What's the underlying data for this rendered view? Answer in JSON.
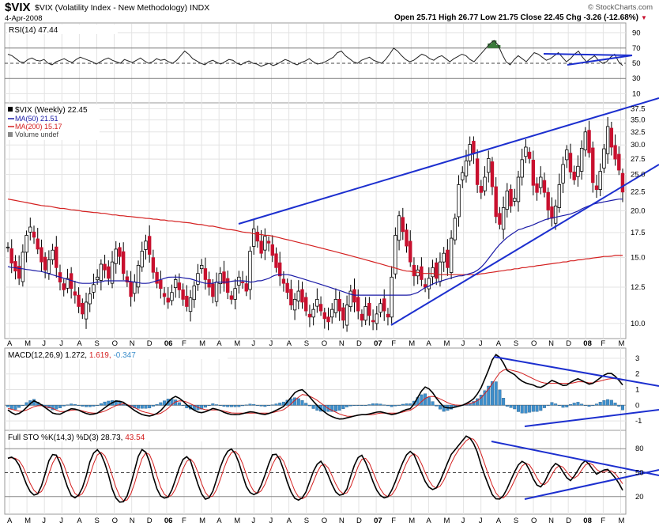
{
  "header": {
    "title": "$VIX (Volatility Index - New Methodology)",
    "exchange": "INDX",
    "date": "4-Apr-2008",
    "brand": "© StockCharts.com",
    "quote": "Open 25.71  High 26.77  Low 21.75  Close 22.45  Chg -3.26 (-12.68%)",
    "quote_arrow": "▼"
  },
  "colors": {
    "up": "#000000",
    "down": "#c8102e",
    "ma50": "#1a1aa6",
    "ma200": "#d42020",
    "trend": "#1c2fcf",
    "hist": "#3d8fcc",
    "rsi_fill": "#3a7a3a"
  },
  "x_axis": {
    "labels": [
      "A",
      "M",
      "J",
      "J",
      "A",
      "S",
      "O",
      "N",
      "D",
      "06",
      "F",
      "M",
      "A",
      "M",
      "J",
      "J",
      "A",
      "S",
      "O",
      "N",
      "D",
      "07",
      "F",
      "M",
      "A",
      "M",
      "J",
      "J",
      "A",
      "S",
      "O",
      "N",
      "D",
      "08",
      "F",
      "M"
    ],
    "bold_labels": [
      "06",
      "07",
      "08"
    ]
  },
  "rsi": {
    "legend": "RSI(14) 47.44",
    "ticks": [
      "90",
      "70",
      "50",
      "30",
      "10"
    ],
    "levels": [
      90,
      70,
      50,
      30,
      10
    ],
    "values": [
      62,
      60,
      56,
      52,
      51,
      55,
      57,
      54,
      53,
      55,
      50,
      48,
      52,
      54,
      56,
      53,
      51,
      55,
      58,
      56,
      54,
      52,
      49,
      52,
      55,
      57,
      54,
      52,
      50,
      55,
      53,
      51,
      54,
      57,
      53,
      50,
      52,
      56,
      54,
      55,
      52,
      50,
      54,
      60,
      66,
      62,
      56,
      53,
      50,
      48,
      52,
      54,
      51,
      49,
      52,
      55,
      54,
      50,
      48,
      51,
      53,
      50,
      49,
      46,
      48,
      50,
      47,
      49,
      52,
      55,
      53,
      50,
      48,
      51,
      53,
      56,
      52,
      49,
      50,
      52,
      55,
      58,
      64,
      66,
      60,
      56,
      52,
      50,
      54,
      56,
      58,
      54,
      52,
      50,
      55,
      62,
      70,
      66,
      60,
      55,
      52,
      54,
      58,
      62,
      60,
      56,
      54,
      58,
      60,
      56,
      52,
      56,
      59,
      62,
      60,
      55,
      52,
      58,
      64,
      70,
      76,
      80,
      74,
      62,
      52,
      48,
      55,
      60,
      56,
      52,
      58,
      64,
      62,
      58,
      54,
      56,
      60,
      64,
      58,
      52,
      56,
      62,
      66,
      58,
      52,
      56,
      60,
      54,
      50,
      52,
      58,
      62,
      52,
      47
    ]
  },
  "price": {
    "legend_symbol": "$VIX (Weekly) 22.45",
    "legend_ma50": "MA(50) 21.51",
    "legend_ma200": "MA(200) 15.17",
    "legend_volume": "Volume undef",
    "ticks": [
      "37.5",
      "35.0",
      "32.5",
      "30.0",
      "27.5",
      "25.0",
      "22.5",
      "20.0",
      "17.5",
      "15.0",
      "12.5",
      "10.0"
    ],
    "levels": [
      37.5,
      35.0,
      32.5,
      30.0,
      27.5,
      25.0,
      22.5,
      20.0,
      17.5,
      15.0,
      12.5,
      10.0
    ],
    "closes": [
      16,
      14.5,
      13.8,
      13.2,
      15.5,
      17.2,
      18.1,
      17,
      15.8,
      14.6,
      13.9,
      14.8,
      15.7,
      14.1,
      12.9,
      12.3,
      13.2,
      12.4,
      11.9,
      11.1,
      10.6,
      11.4,
      12,
      12.7,
      13.3,
      14.4,
      13.9,
      13.2,
      14.6,
      15.8,
      15.1,
      13.6,
      12.9,
      11.8,
      12.9,
      14.3,
      15.6,
      16.6,
      15.3,
      13.7,
      12.8,
      12.4,
      11.8,
      11.4,
      12.1,
      13.1,
      12.3,
      11.6,
      11.1,
      11.7,
      12.6,
      13.6,
      14.3,
      13.1,
      12.5,
      11.8,
      12.9,
      13.6,
      12.8,
      12.1,
      11.6,
      12.4,
      13.3,
      12.9,
      12.2,
      15.6,
      17.9,
      16.6,
      15.4,
      17.1,
      16.4,
      15.2,
      14.1,
      13.4,
      12.8,
      12.1,
      11.2,
      11.6,
      12.2,
      11.4,
      10.8,
      10.4,
      10.9,
      11.6,
      10.8,
      10.3,
      10.1,
      10.9,
      11.6,
      10.8,
      10.2,
      11.2,
      12.2,
      11.4,
      10.8,
      10.2,
      11.1,
      10.5,
      10.1,
      10.6,
      11.3,
      10.8,
      10.4,
      13.3,
      17.2,
      19.4,
      17.6,
      16.1,
      14.6,
      13.4,
      13.9,
      13.1,
      12.5,
      13.2,
      14.1,
      13.2,
      14.6,
      15.4,
      14.1,
      16.9,
      19.1,
      23.5,
      25.3,
      27.2,
      30.1,
      28.4,
      23.5,
      22.4,
      24.6,
      27.6,
      23.2,
      19.3,
      18.4,
      20.4,
      22.6,
      20.6,
      21.6,
      24.6,
      27.4,
      29.6,
      27.6,
      23.4,
      22.4,
      24.6,
      22.4,
      20.1,
      19.1,
      20.6,
      23.5,
      26.6,
      29.1,
      25.4,
      24.2,
      26.3,
      29.4,
      32.5,
      28.6,
      23.8,
      22.8,
      25.5,
      29.3,
      33.6,
      29.6,
      27.5,
      25.7,
      22.45
    ],
    "ma50": [
      14.2,
      14.1,
      14.1,
      14.0,
      14.0,
      13.9,
      13.9,
      13.8,
      13.8,
      13.7,
      13.6,
      13.5,
      13.4,
      13.3,
      13.2,
      13.1,
      13.0,
      12.9,
      12.8,
      12.8,
      12.8,
      12.8,
      12.9,
      12.9,
      13.0,
      13.0,
      13.0,
      13.0,
      13.0,
      13.0,
      13.0,
      12.9,
      12.9,
      12.8,
      12.8,
      12.8,
      12.9,
      13.0,
      13.1,
      13.2,
      13.3,
      13.3,
      13.3,
      13.3,
      13.2,
      13.2,
      13.1,
      13.0,
      12.9,
      12.8,
      12.8,
      12.8,
      12.9,
      12.9,
      12.9,
      12.9,
      13.0,
      13.0,
      13.0,
      13.0,
      12.9,
      12.9,
      13.0,
      13.0,
      13.1,
      13.2,
      13.4,
      13.5,
      13.5,
      13.5,
      13.5,
      13.4,
      13.3,
      13.2,
      13.1,
      13.0,
      12.9,
      12.8,
      12.7,
      12.6,
      12.5,
      12.4,
      12.3,
      12.2,
      12.1,
      12.0,
      11.9,
      11.9,
      11.9,
      11.9,
      11.9,
      11.9,
      11.9,
      11.9,
      11.9,
      11.9,
      11.9,
      11.9,
      11.9,
      11.9,
      11.9,
      12.0,
      12.1,
      12.3,
      12.5,
      12.6,
      12.8,
      12.9,
      13.0,
      13.1,
      13.2,
      13.3,
      13.4,
      13.4,
      13.5,
      13.6,
      13.7,
      13.9,
      14.2,
      14.6,
      15.1,
      15.6,
      16.1,
      16.5,
      16.9,
      17.2,
      17.5,
      17.8,
      17.9,
      18.1,
      18.2,
      18.4,
      18.6,
      18.8,
      19.0,
      19.1,
      19.2,
      19.3,
      19.4,
      19.5,
      19.6,
      19.8,
      20.0,
      20.3,
      20.5,
      20.7,
      20.9,
      21.0,
      21.1,
      21.2,
      21.3,
      21.4,
      21.5,
      21.5
    ],
    "ma200": [
      21.5,
      21.4,
      21.3,
      21.2,
      21.1,
      21.0,
      20.9,
      20.8,
      20.7,
      20.6,
      20.6,
      20.5,
      20.4,
      20.3,
      20.3,
      20.2,
      20.1,
      20.1,
      20.0,
      19.9,
      19.9,
      19.8,
      19.8,
      19.7,
      19.7,
      19.6,
      19.5,
      19.5,
      19.4,
      19.4,
      19.3,
      19.3,
      19.2,
      19.2,
      19.1,
      19.1,
      19.0,
      19.0,
      18.9,
      18.9,
      18.8,
      18.8,
      18.7,
      18.7,
      18.6,
      18.6,
      18.5,
      18.4,
      18.4,
      18.3,
      18.2,
      18.2,
      18.1,
      18.0,
      17.9,
      17.8,
      17.8,
      17.7,
      17.6,
      17.5,
      17.5,
      17.4,
      17.3,
      17.3,
      17.2,
      17.2,
      17.1,
      17.0,
      16.9,
      16.8,
      16.7,
      16.6,
      16.5,
      16.4,
      16.3,
      16.2,
      16.1,
      16.0,
      15.9,
      15.8,
      15.7,
      15.6,
      15.5,
      15.4,
      15.3,
      15.2,
      15.1,
      15.0,
      14.9,
      14.8,
      14.7,
      14.6,
      14.5,
      14.4,
      14.3,
      14.2,
      14.1,
      14.0,
      13.9,
      13.8,
      13.8,
      13.7,
      13.7,
      13.6,
      13.6,
      13.6,
      13.6,
      13.5,
      13.5,
      13.5,
      13.5,
      13.5,
      13.5,
      13.5,
      13.5,
      13.5,
      13.5,
      13.5,
      13.6,
      13.6,
      13.7,
      13.7,
      13.8,
      13.8,
      13.9,
      13.9,
      14.0,
      14.0,
      14.1,
      14.1,
      14.2,
      14.2,
      14.3,
      14.3,
      14.4,
      14.4,
      14.5,
      14.5,
      14.6,
      14.6,
      14.7,
      14.7,
      14.8,
      14.8,
      14.9,
      14.9,
      15.0,
      15.0,
      15.1,
      15.1,
      15.1,
      15.2,
      15.2,
      15.2
    ]
  },
  "macd": {
    "legend_main": "MACD(12,26,9) 1.272,",
    "legend_signal": "1.619,",
    "legend_hist": "-0.347",
    "ticks": [
      "3",
      "2",
      "1",
      "0",
      "-1"
    ],
    "levels": [
      3,
      2,
      1,
      0,
      -1
    ],
    "macd": [
      -0.3,
      -0.6,
      -0.5,
      -0.1,
      0.3,
      0.1,
      -0.2,
      -0.5,
      -0.6,
      -0.4,
      -0.2,
      -0.3,
      -0.5,
      -0.6,
      -0.5,
      -0.2,
      0.1,
      0.3,
      0.2,
      -0.1,
      -0.4,
      -0.6,
      -0.7,
      -0.6,
      -0.3,
      0.2,
      0.6,
      0.4,
      0.0,
      -0.3,
      -0.5,
      -0.4,
      -0.2,
      -0.3,
      -0.5,
      -0.6,
      -0.6,
      -0.5,
      -0.4,
      -0.5,
      -0.6,
      -0.5,
      -0.3,
      -0.1,
      0.4,
      0.9,
      1.0,
      0.6,
      0.1,
      -0.3,
      -0.6,
      -0.8,
      -0.9,
      -0.8,
      -0.7,
      -0.6,
      -0.6,
      -0.5,
      -0.4,
      -0.5,
      -0.6,
      -0.5,
      -0.3,
      -0.2,
      0.5,
      1.2,
      1.0,
      0.4,
      -0.1,
      -0.2,
      -0.1,
      0.0,
      0.2,
      0.5,
      1.2,
      2.2,
      3.3,
      3.0,
      2.2,
      2.0,
      1.6,
      1.4,
      1.3,
      1.1,
      1.3,
      1.6,
      1.4,
      1.2,
      1.5,
      1.7,
      1.5,
      1.3,
      1.6,
      1.9,
      2.1,
      1.8,
      1.3
    ],
    "signal": [
      -0.2,
      -0.3,
      -0.4,
      -0.3,
      -0.1,
      0.0,
      -0.1,
      -0.2,
      -0.4,
      -0.4,
      -0.3,
      -0.3,
      -0.4,
      -0.5,
      -0.5,
      -0.4,
      -0.2,
      0.0,
      0.1,
      0.0,
      -0.2,
      -0.4,
      -0.5,
      -0.6,
      -0.5,
      -0.2,
      0.2,
      0.3,
      0.2,
      0.0,
      -0.2,
      -0.3,
      -0.3,
      -0.3,
      -0.4,
      -0.5,
      -0.5,
      -0.5,
      -0.5,
      -0.5,
      -0.5,
      -0.5,
      -0.4,
      -0.3,
      0.0,
      0.4,
      0.7,
      0.6,
      0.4,
      0.1,
      -0.2,
      -0.4,
      -0.6,
      -0.7,
      -0.7,
      -0.6,
      -0.6,
      -0.6,
      -0.5,
      -0.5,
      -0.5,
      -0.5,
      -0.4,
      -0.3,
      0.0,
      0.4,
      0.6,
      0.5,
      0.3,
      0.1,
      0.0,
      0.0,
      0.1,
      0.2,
      0.5,
      1.0,
      1.6,
      2.2,
      2.3,
      2.2,
      2.1,
      1.9,
      1.7,
      1.5,
      1.4,
      1.4,
      1.4,
      1.4,
      1.4,
      1.5,
      1.5,
      1.4,
      1.5,
      1.6,
      1.7,
      1.7,
      1.6
    ]
  },
  "sto": {
    "legend_main": "Full STO %K(14,3) %D(3) 28.73,",
    "legend_d": "43.54",
    "ticks": [
      "80",
      "50",
      "20"
    ],
    "levels": [
      80,
      50,
      20
    ],
    "k": [
      68,
      70,
      62,
      45,
      28,
      22,
      24,
      45,
      68,
      76,
      62,
      40,
      22,
      18,
      25,
      45,
      70,
      80,
      72,
      55,
      30,
      14,
      12,
      22,
      45,
      70,
      82,
      68,
      42,
      22,
      18,
      20,
      38,
      58,
      72,
      66,
      45,
      25,
      16,
      20,
      40,
      62,
      76,
      80,
      70,
      48,
      28,
      22,
      25,
      40,
      60,
      76,
      70,
      52,
      30,
      18,
      15,
      22,
      40,
      58,
      65,
      55,
      38,
      25,
      20,
      28,
      50,
      68,
      72,
      58,
      40,
      25,
      18,
      20,
      32,
      50,
      66,
      78,
      72,
      56,
      40,
      30,
      28,
      40,
      56,
      72,
      80,
      88,
      96,
      92,
      78,
      56,
      38,
      22,
      15,
      20,
      32,
      48,
      60,
      66,
      55,
      40,
      30,
      38,
      52,
      62,
      58,
      45,
      40,
      48,
      60,
      66,
      56,
      48,
      52,
      55,
      48,
      40,
      28
    ]
  },
  "chart_data": [
    {
      "type": "line",
      "title": "RSI(14) 47.44",
      "series": [
        {
          "name": "RSI(14)",
          "values": "see rsi.values"
        }
      ],
      "ylim": [
        0,
        100
      ],
      "reference_lines": [
        70,
        50,
        30
      ]
    },
    {
      "type": "line",
      "title": "$VIX (Weekly) 22.45",
      "ylim": [
        9,
        38
      ],
      "scale": "log",
      "series": [
        {
          "name": "$VIX (Weekly)",
          "values": "see price.closes"
        },
        {
          "name": "MA(50)",
          "values": "see price.ma50"
        },
        {
          "name": "MA(200)",
          "values": "see price.ma200"
        }
      ],
      "grid": true,
      "legend": "top-left"
    },
    {
      "type": "line",
      "title": "MACD(12,26,9) 1.272, 1.619, -0.347",
      "ylim": [
        -1.5,
        3.5
      ],
      "grid": true
    },
    {
      "type": "line",
      "title": "Full STO %K(14,3) %D(3) 28.73, 43.54",
      "ylim": [
        0,
        100
      ],
      "grid": true
    }
  ]
}
